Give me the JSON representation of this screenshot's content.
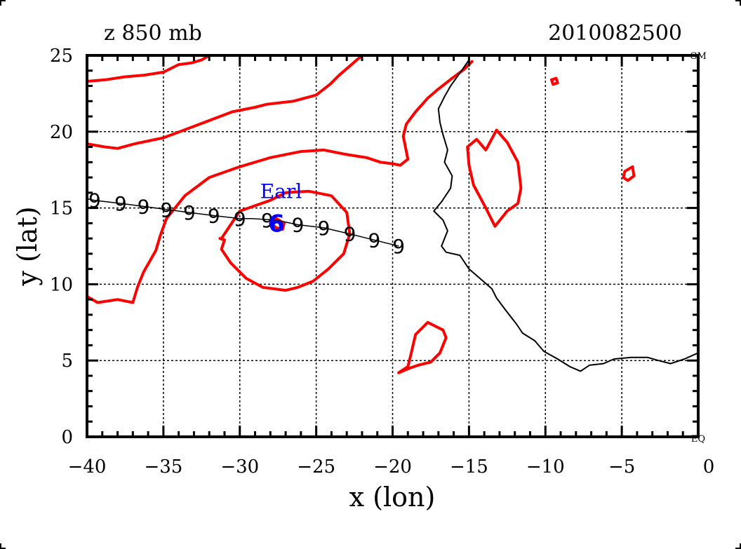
{
  "chart_data": {
    "type": "line",
    "title_left": "z 850 mb",
    "title_right": "2010082500",
    "xlabel": "x (lon)",
    "ylabel": "y (lat)",
    "xlim": [
      -40,
      0
    ],
    "ylim": [
      0,
      25
    ],
    "x_ticks": [
      -40,
      -35,
      -30,
      -25,
      -20,
      -15,
      -10,
      -5,
      0
    ],
    "x_tick_labels": [
      "−40",
      "−35",
      "−30",
      "−25",
      "−20",
      "−15",
      "−10",
      "−5",
      "0"
    ],
    "y_ticks": [
      0,
      5,
      10,
      15,
      20,
      25
    ],
    "y_tick_labels": [
      "0",
      "5",
      "10",
      "15",
      "20",
      "25"
    ],
    "grid": true,
    "corner_labels": {
      "top_right": "GM",
      "bottom_right": "EQ"
    },
    "colors": {
      "contour": "#ff0000",
      "storm": "#0000ff",
      "track": "#000000",
      "coast": "#000000",
      "grid": "#000000"
    },
    "storm": {
      "name": "Earl",
      "lon": -27.6,
      "lat": 14.0,
      "label_lon": -27.3,
      "label_lat": 16.1
    },
    "track": {
      "lon": [
        -40,
        -39.5,
        -37.8,
        -36.3,
        -34.8,
        -33.3,
        -31.7,
        -30.0,
        -29.2,
        -27.6,
        -26.2,
        -24.5,
        -22.8,
        -21.2,
        -19.6
      ],
      "lat": [
        15.6,
        15.5,
        15.3,
        15.1,
        14.9,
        14.7,
        14.5,
        14.3,
        14.3,
        14.2,
        13.9,
        13.7,
        13.3,
        12.9,
        12.5
      ]
    },
    "track_symbol_lon": [
      -39.5,
      -37.8,
      -36.3,
      -34.8,
      -33.3,
      -31.7,
      -30.0,
      -28.2,
      -26.2,
      -24.5,
      -22.8,
      -21.2,
      -19.6
    ],
    "track_symbol_lat": [
      15.5,
      15.3,
      15.1,
      14.9,
      14.7,
      14.5,
      14.3,
      14.2,
      13.9,
      13.7,
      13.3,
      12.9,
      12.5
    ],
    "coastline": {
      "lon": [
        -15.0,
        -15.7,
        -16.2,
        -16.6,
        -17.0,
        -16.9,
        -16.7,
        -16.4,
        -16.6,
        -16.1,
        -16.2,
        -16.8,
        -17.3,
        -16.7,
        -16.4,
        -16.8,
        -16.5,
        -15.6,
        -15.0,
        -14.3,
        -13.5,
        -13.2,
        -12.6,
        -11.9,
        -11.5,
        -10.7,
        -10.1,
        -9.2,
        -8.4,
        -7.7,
        -7.1,
        -6.2,
        -5.5,
        -4.4,
        -3.3,
        -2.6,
        -1.8,
        -0.9,
        0.0
      ],
      "lat": [
        24.7,
        23.7,
        23.0,
        22.3,
        21.5,
        20.6,
        19.8,
        18.8,
        18.0,
        17.1,
        16.3,
        15.4,
        14.8,
        14.2,
        13.5,
        12.5,
        12.1,
        11.9,
        11.0,
        10.4,
        9.7,
        9.1,
        8.3,
        7.4,
        6.8,
        6.3,
        5.6,
        5.1,
        4.6,
        4.3,
        4.7,
        4.8,
        5.1,
        5.2,
        5.2,
        5.0,
        4.8,
        5.1,
        5.5
      ]
    },
    "contours": [
      {
        "name": "north-band",
        "lon": [
          -40,
          -38.8,
          -37.5,
          -36.3,
          -35.0,
          -34.0,
          -33.2,
          -32.5,
          -32.0,
          -31.4
        ],
        "lat": [
          23.3,
          23.4,
          23.6,
          23.7,
          23.9,
          24.4,
          24.5,
          24.7,
          25.0,
          25.0
        ]
      },
      {
        "name": "central-ridge",
        "lon": [
          -40,
          -38.8,
          -38.0,
          -36.9,
          -35.0,
          -32.6,
          -30.5,
          -29.0,
          -28.2,
          -26.5,
          -25.0,
          -24.1,
          -23.5,
          -22.8,
          -22.0
        ],
        "lat": [
          19.2,
          19.0,
          18.9,
          19.2,
          19.6,
          20.5,
          21.3,
          21.6,
          21.8,
          22.0,
          22.4,
          23.1,
          23.7,
          24.3,
          25.0
        ]
      },
      {
        "name": "trough-west",
        "lon": [
          -40,
          -39.3,
          -38.0,
          -37.0,
          -36.7,
          -36.3,
          -35.5,
          -35.2,
          -34.8,
          -33.6,
          -32.0,
          -30.0,
          -28.0,
          -26.0,
          -24.5,
          -23.0,
          -21.7,
          -20.8,
          -20.0,
          -19.5,
          -19.0,
          -19.3,
          -19.1,
          -18.5,
          -17.7,
          -17.0,
          -16.1,
          -15.3,
          -14.8
        ],
        "lat": [
          9.2,
          8.8,
          9.0,
          8.8,
          9.8,
          10.8,
          12.2,
          13.2,
          14.3,
          15.8,
          17.0,
          17.7,
          18.3,
          18.7,
          18.8,
          18.5,
          18.3,
          18.0,
          17.9,
          17.8,
          18.2,
          19.7,
          20.5,
          21.3,
          22.2,
          22.8,
          23.5,
          24.1,
          24.6
        ]
      },
      {
        "name": "earl-low",
        "lon": [
          -31.2,
          -30.0,
          -28.0,
          -27.0,
          -25.5,
          -24.0,
          -23.0,
          -22.8,
          -23.2,
          -24.2,
          -25.2,
          -26.2,
          -27.0,
          -28.5,
          -29.6,
          -30.6,
          -31.2,
          -31.0,
          -31.3
        ],
        "lat": [
          13.0,
          14.8,
          15.5,
          16.0,
          16.1,
          15.8,
          14.7,
          13.3,
          12.0,
          11.0,
          10.2,
          9.8,
          9.6,
          9.8,
          10.4,
          11.4,
          12.3,
          12.9,
          13.0
        ]
      },
      {
        "name": "earl-inner",
        "lon": [
          -28.0,
          -27.6,
          -27.1,
          -27.2,
          -27.6,
          -28.0
        ],
        "lat": [
          14.0,
          14.3,
          14.0,
          13.6,
          13.7,
          14.0
        ]
      },
      {
        "name": "south-closed",
        "lon": [
          -19.6,
          -19.0,
          -18.8,
          -18.5,
          -17.7,
          -16.7,
          -16.5,
          -16.9,
          -17.5,
          -18.3,
          -18.9,
          -19.6
        ],
        "lat": [
          4.2,
          4.6,
          5.4,
          6.7,
          7.5,
          7.0,
          6.5,
          5.5,
          4.9,
          4.7,
          4.5,
          4.2
        ]
      },
      {
        "name": "east-closed",
        "lon": [
          -15.1,
          -14.5,
          -13.9,
          -13.2,
          -12.5,
          -11.8,
          -11.6,
          -11.8,
          -12.5,
          -13.3,
          -13.9,
          -14.7,
          -15.0,
          -15.1
        ],
        "lat": [
          19.0,
          19.5,
          18.8,
          20.1,
          19.3,
          18.0,
          16.3,
          15.3,
          14.8,
          13.8,
          15.0,
          16.5,
          17.8,
          19.0
        ]
      },
      {
        "name": "small-ring-a",
        "lon": [
          -9.6,
          -9.3,
          -9.2,
          -9.5,
          -9.6
        ],
        "lat": [
          23.4,
          23.5,
          23.2,
          23.1,
          23.4
        ]
      },
      {
        "name": "small-ring-b",
        "lon": [
          -4.8,
          -4.3,
          -4.2,
          -4.6,
          -4.9,
          -4.8
        ],
        "lat": [
          17.4,
          17.7,
          17.1,
          16.8,
          17.0,
          17.4
        ]
      }
    ]
  }
}
